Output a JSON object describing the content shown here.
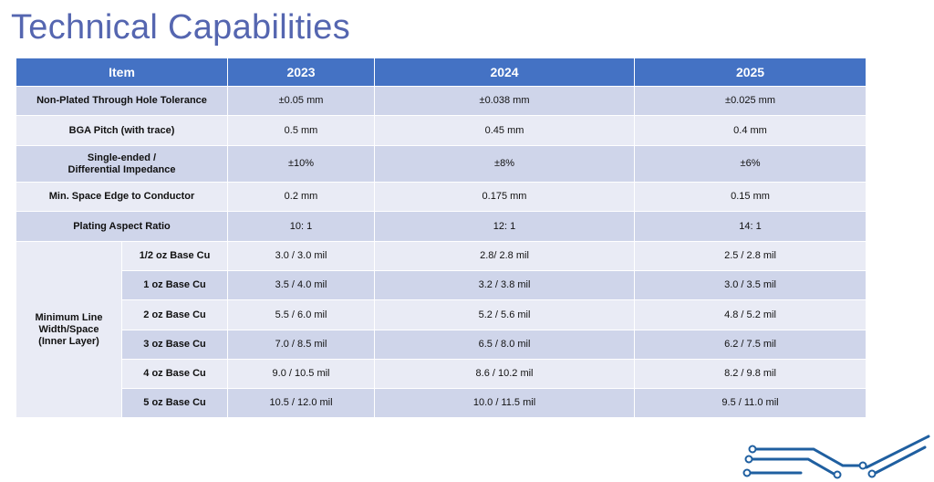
{
  "title": "Technical Capabilities",
  "header": {
    "item": "Item",
    "y1": "2023",
    "y2": "2024",
    "y3": "2025"
  },
  "rows": [
    {
      "label": "Non-Plated Through Hole Tolerance",
      "v1": "±0.05 mm",
      "v2": "±0.038 mm",
      "v3": "±0.025 mm"
    },
    {
      "label": "BGA Pitch (with trace)",
      "v1": "0.5 mm",
      "v2": "0.45 mm",
      "v3": "0.4 mm"
    },
    {
      "label_line1": "Single-ended /",
      "label_line2": "Differential Impedance",
      "v1": "±10%",
      "v2": "±8%",
      "v3": "±6%"
    },
    {
      "label": "Min. Space Edge to Conductor",
      "v1": "0.2 mm",
      "v2": "0.175 mm",
      "v3": "0.15 mm"
    },
    {
      "label": "Plating Aspect Ratio",
      "v1": "10: 1",
      "v2": "12: 1",
      "v3": "14: 1"
    }
  ],
  "line_width_group": {
    "label_line1": "Minimum Line",
    "label_line2": "Width/Space",
    "label_line3": "(Inner Layer)",
    "rows": [
      {
        "sub": "1/2 oz Base Cu",
        "v1": "3.0 / 3.0 mil",
        "v2": "2.8/ 2.8 mil",
        "v3": "2.5 / 2.8 mil"
      },
      {
        "sub": "1 oz Base Cu",
        "v1": "3.5 / 4.0 mil",
        "v2": "3.2 / 3.8 mil",
        "v3": "3.0 / 3.5 mil"
      },
      {
        "sub": "2 oz Base Cu",
        "v1": "5.5 / 6.0 mil",
        "v2": "5.2 / 5.6 mil",
        "v3": "4.8 / 5.2 mil"
      },
      {
        "sub": "3 oz Base Cu",
        "v1": "7.0 / 8.5 mil",
        "v2": "6.5 / 8.0 mil",
        "v3": "6.2 / 7.5 mil"
      },
      {
        "sub": "4 oz Base Cu",
        "v1": "9.0 / 10.5 mil",
        "v2": "8.6 / 10.2 mil",
        "v3": "8.2 / 9.8 mil"
      },
      {
        "sub": "5 oz Base Cu",
        "v1": "10.5 / 12.0 mil",
        "v2": "10.0 / 11.5 mil",
        "v3": "9.5 / 11.0 mil"
      }
    ]
  },
  "colors": {
    "title": "#5566b0",
    "header_bg": "#4472c4",
    "row_dark": "#cfd5ea",
    "row_light": "#e9ebf5",
    "logo": "#1f5fa0"
  },
  "logo_icon": "circuit-trace-icon"
}
